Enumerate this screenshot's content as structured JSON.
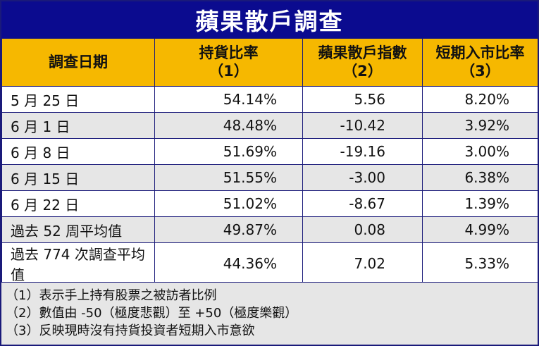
{
  "title": "蘋果散戶調查",
  "headers": [
    {
      "line1": "調查日期",
      "line2": ""
    },
    {
      "line1": "持貨比率",
      "line2": "（1）"
    },
    {
      "line1": "蘋果散戶指數",
      "line2": "（2）"
    },
    {
      "line1": "短期入市比率",
      "line2": "（3）"
    }
  ],
  "rows": [
    [
      "5 月 25 日",
      "54.14%",
      "5.56",
      "8.20%"
    ],
    [
      "6 月 1 日",
      "48.48%",
      "-10.42",
      "3.92%"
    ],
    [
      "6 月 8 日",
      "51.69%",
      "-19.16",
      "3.00%"
    ],
    [
      "6 月 15 日",
      "51.55%",
      "-3.00",
      "6.38%"
    ],
    [
      "6 月 22 日",
      "51.02%",
      "-8.67",
      "1.39%"
    ],
    [
      "過去 52 周平均值",
      "49.87%",
      "0.08",
      "4.99%"
    ],
    [
      "過去 774 次調查平均值",
      "44.36%",
      "7.02",
      "5.33%"
    ]
  ],
  "notes": [
    "（1）表示手上持有股票之被訪者比例",
    "（2）數值由 -50（極度悲觀）至 +50（極度樂觀）",
    "（3）反映現時沒有持貨投資者短期入市意欲"
  ],
  "colors": {
    "title_bg": "#0b0b8f",
    "header_bg": "#f6b800",
    "row_alt_bg": "#e6e6e6",
    "border": "#1a1a7a"
  }
}
